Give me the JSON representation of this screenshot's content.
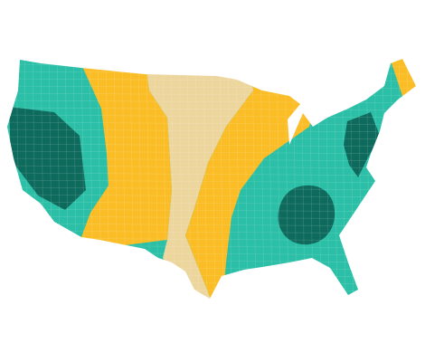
{
  "map": {
    "regions": [
      {
        "color": "#2bbfa6"
      },
      {
        "color": "#fbbd26"
      },
      {
        "color": "#ecd69d"
      },
      {
        "color": "#fbbd26"
      },
      {
        "color": "#0f6b5d"
      },
      {
        "color": "#0f6b5d"
      },
      {
        "color": "#0f6b5d"
      },
      {
        "color": "#fbbd26"
      }
    ]
  }
}
